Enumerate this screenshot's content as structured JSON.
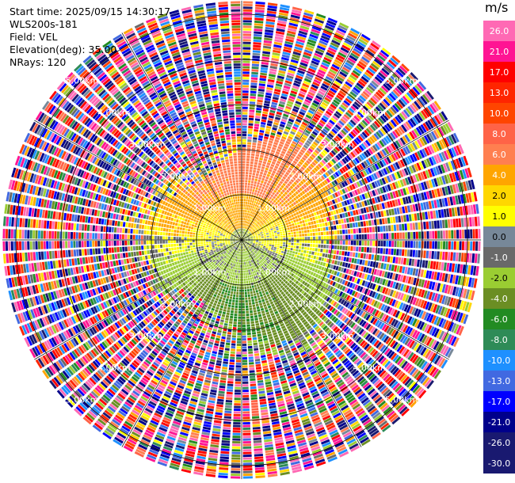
{
  "info": {
    "start_time": "Start time: 2025/09/15 14:30:17",
    "instrument": "WLS200s-181",
    "field": "Field: VEL",
    "elevation": "Elevation(deg): 35.00",
    "nrays": "NRays: 120"
  },
  "colorbar": {
    "unit": "m/s",
    "ticks": [
      "26.0",
      "21.0",
      "17.0",
      "13.0",
      "10.0",
      "8.0",
      "6.0",
      "4.0",
      "2.0",
      "1.0",
      "0.0",
      "-1.0",
      "-2.0",
      "-4.0",
      "-6.0",
      "-8.0",
      "-10.0",
      "-13.0",
      "-17.0",
      "-21.0",
      "-26.0",
      "-30.0"
    ],
    "colors": [
      "#ff69b4",
      "#ff1493",
      "#ff0000",
      "#ff2500",
      "#ff4500",
      "#ff6347",
      "#ff7f50",
      "#ffa500",
      "#ffd700",
      "#ffff00",
      "#778899",
      "#696969",
      "#9acd32",
      "#6b8e23",
      "#228b22",
      "#2e8b57",
      "#1e90ff",
      "#4169e1",
      "#0000ff",
      "#00008b",
      "#191970",
      "#191970"
    ]
  },
  "chart_data": {
    "type": "ppi",
    "field": "VEL",
    "units": "m/s",
    "n_rays": 120,
    "elevation_deg": 35.0,
    "range_rings_km": [
      1.0,
      2.0,
      3.0,
      4.0,
      5.0
    ],
    "range_ring_labels": [
      "1.00km",
      "2.00km",
      "3.00km",
      "4.00km",
      "5.00km"
    ],
    "max_range_km": 5.3,
    "velocity_zones": [
      {
        "description": "core",
        "range_km": [
          0.0,
          0.25
        ],
        "values_ms": [
          -6.0,
          0.0
        ]
      },
      {
        "description": "inner ring",
        "range_km": [
          0.25,
          1.0
        ],
        "north_ms": 1.5,
        "south_ms": -2.0
      },
      {
        "description": "mid ring",
        "range_km": [
          1.0,
          2.2
        ],
        "north_ms": 3.0,
        "south_ms": -5.0
      },
      {
        "description": "noisy outer ring",
        "range_km": [
          2.2,
          5.3
        ],
        "values_ms": "random -30 to 26"
      }
    ]
  }
}
